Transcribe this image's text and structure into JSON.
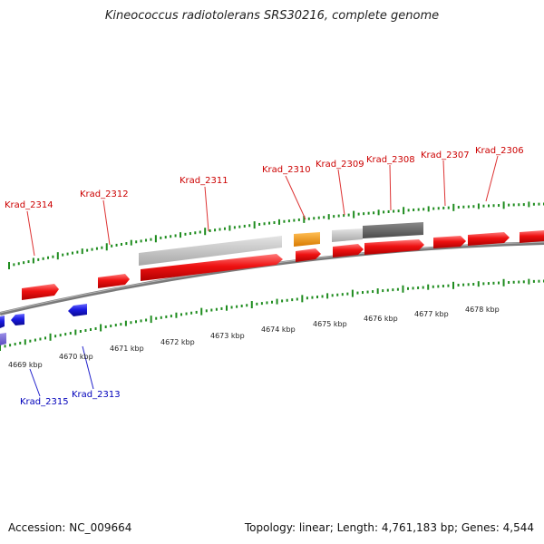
{
  "header": {
    "title": "Kineococcus radiotolerans SRS30216, complete genome"
  },
  "footer": {
    "accession": "Accession: NC_009664",
    "summary": "Topology: linear; Length: 4,761,183 bp; Genes: 4,544"
  },
  "colors": {
    "forward_gene": "#ee1111",
    "reverse_gene": "#1a1ae0",
    "tick": "#1e8c1e",
    "label_forward": "#cc0000",
    "label_reverse": "#0000bb",
    "backbone": "#808080",
    "orange_feature": "#f0960a",
    "light_grey_feature": "#c4c4c4",
    "dark_grey_feature": "#6a6a6a"
  },
  "scale_labels": [
    "4669 kbp",
    "4670 kbp",
    "4671 kbp",
    "4672 kbp",
    "4673 kbp",
    "4674 kbp",
    "4675 kbp",
    "4676 kbp",
    "4677 kbp",
    "4678 kbp"
  ],
  "gene_labels_forward": [
    "Krad_2314",
    "Krad_2312",
    "Krad_2311",
    "Krad_2310",
    "Krad_2309",
    "Krad_2308",
    "Krad_2307",
    "Krad_2306"
  ],
  "gene_labels_reverse": [
    "Krad_2315",
    "Krad_2313"
  ]
}
